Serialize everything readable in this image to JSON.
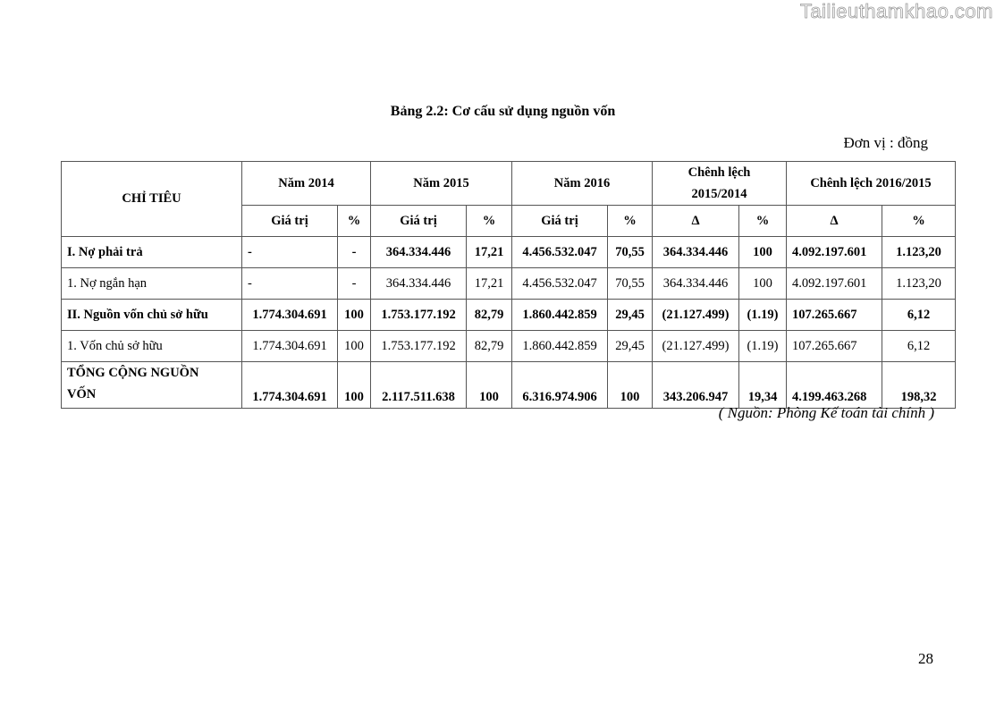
{
  "watermark": "Tailieuthamkhao.com",
  "title": "Bảng 2.2: Cơ cấu sử dụng nguồn vốn",
  "unit": "Đơn vị : đồng",
  "table": {
    "header_main": [
      "CHỈ TIÊU",
      "Năm 2014",
      "Năm 2015",
      "Năm 2016",
      "Chênh lệch 2015/2014",
      "Chênh lệch 2016/2015"
    ],
    "header_sub": [
      "Giá trị",
      "%",
      "Giá trị",
      "%",
      "Giá trị",
      "%",
      "Δ",
      "%",
      "Δ",
      "%"
    ],
    "rows": [
      {
        "bold": true,
        "cells": [
          "I. Nợ phải trả",
          "-",
          "-",
          "364.334.446",
          "17,21",
          "4.456.532.047",
          "70,55",
          "364.334.446",
          "100",
          "4.092.197.601",
          "1.123,20"
        ]
      },
      {
        "bold": false,
        "cells": [
          "1. Nợ ngắn hạn",
          "-",
          "-",
          "364.334.446",
          "17,21",
          "4.456.532.047",
          "70,55",
          "364.334.446",
          "100",
          "4.092.197.601",
          "1.123,20"
        ]
      },
      {
        "bold": true,
        "cells": [
          "II. Nguồn vốn chủ sở hữu",
          "1.774.304.691",
          "100",
          "1.753.177.192",
          "82,79",
          "1.860.442.859",
          "29,45",
          "(21.127.499)",
          "(1.19)",
          "107.265.667",
          "6,12"
        ]
      },
      {
        "bold": false,
        "cells": [
          "1. Vốn chủ sở hữu",
          "1.774.304.691",
          "100",
          "1.753.177.192",
          "82,79",
          "1.860.442.859",
          "29,45",
          "(21.127.499)",
          "(1.19)",
          "107.265.667",
          "6,12"
        ]
      },
      {
        "bold": true,
        "cells": [
          "TỔNG CỘNG NGUỒN VỐN",
          "1.774.304.691",
          "100",
          "2.117.511.638",
          "100",
          "6.316.974.906",
          "100",
          "343.206.947",
          "19,34",
          "4.199.463.268",
          "198,32"
        ]
      }
    ]
  },
  "source": "( Nguồn: Phòng Kế toán tài chính )",
  "page_number": "28"
}
